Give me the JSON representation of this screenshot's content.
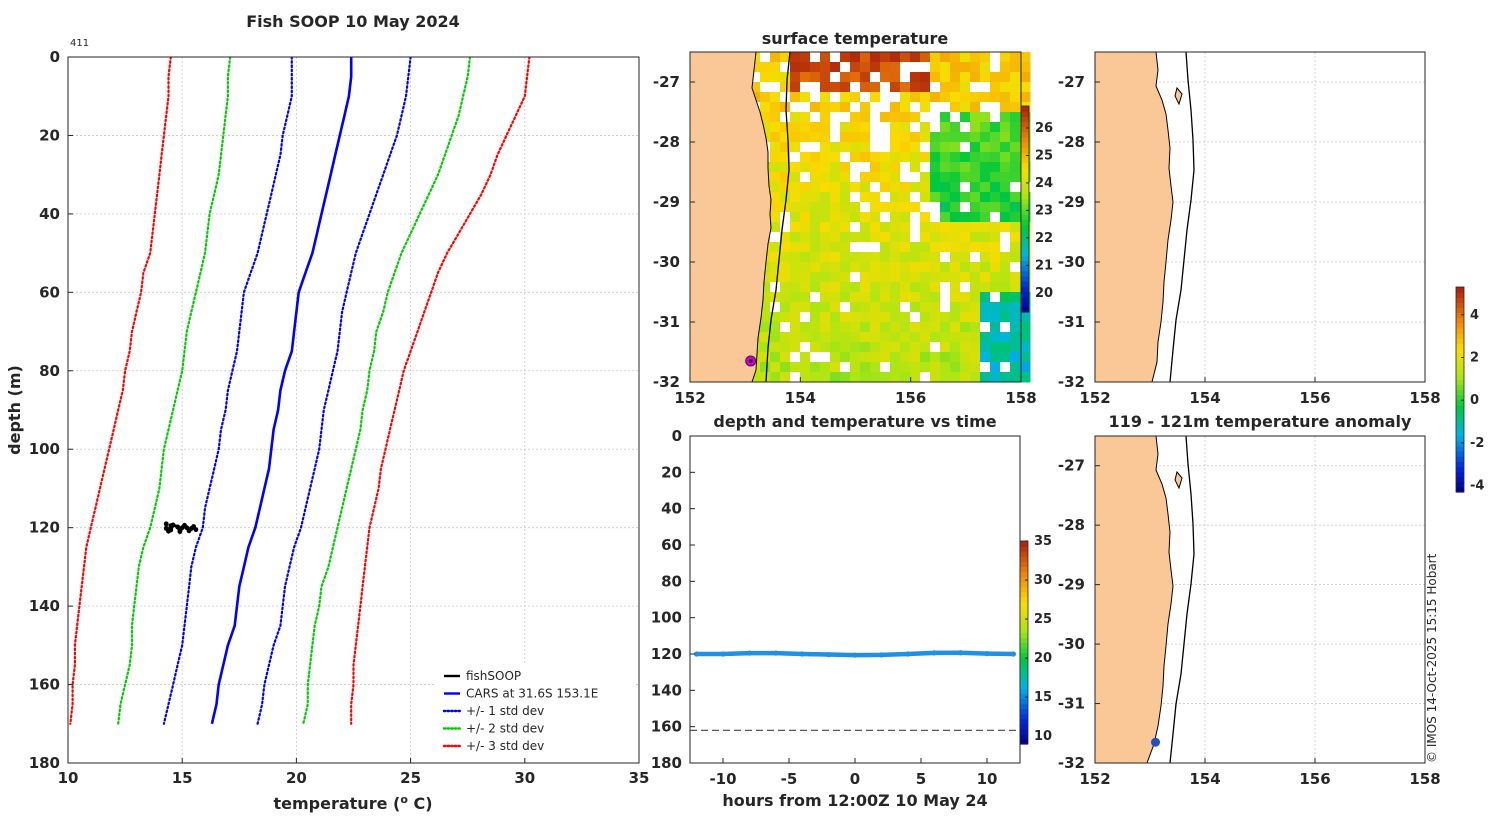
{
  "chart_data": [
    {
      "type": "line",
      "title": "Fish SOOP 10 May 2024",
      "corner_label": "411",
      "xlabel": "temperature (° C)",
      "xlabel_main": "temperature (",
      "xlabel_sup": "o",
      "xlabel_end": " C)",
      "ylabel": "depth (m)",
      "xlim": [
        10,
        35
      ],
      "ylim": [
        180,
        0
      ],
      "xticks": [
        "10",
        "15",
        "20",
        "25",
        "30",
        "35"
      ],
      "yticks": [
        "0",
        "20",
        "40",
        "60",
        "80",
        "100",
        "120",
        "140",
        "160",
        "180"
      ],
      "depths": [
        0,
        5,
        10,
        15,
        20,
        25,
        30,
        35,
        40,
        45,
        50,
        55,
        60,
        65,
        70,
        75,
        80,
        85,
        90,
        95,
        100,
        105,
        110,
        115,
        120,
        125,
        130,
        135,
        140,
        145,
        150,
        155,
        160,
        165,
        170
      ],
      "series": [
        {
          "name": "CARS at 31.6S 153.1E",
          "color": "#0000ff",
          "style": "solid",
          "values": [
            22.4,
            22.4,
            22.3,
            22.1,
            21.9,
            21.7,
            21.5,
            21.3,
            21.1,
            20.9,
            20.7,
            20.4,
            20.1,
            20.0,
            19.9,
            19.8,
            19.5,
            19.3,
            19.2,
            19.0,
            18.9,
            18.8,
            18.6,
            18.4,
            18.2,
            17.9,
            17.7,
            17.5,
            17.4,
            17.3,
            17.0,
            16.8,
            16.6,
            16.5,
            16.3
          ]
        },
        {
          "name": "+/- 1 std dev",
          "color": "#0000ff",
          "style": "dotted",
          "values": [
            25.0,
            24.9,
            24.8,
            24.6,
            24.4,
            24.1,
            23.8,
            23.5,
            23.2,
            22.9,
            22.6,
            22.4,
            22.2,
            22.0,
            21.9,
            21.8,
            21.6,
            21.4,
            21.2,
            21.1,
            21.0,
            20.8,
            20.6,
            20.4,
            20.2,
            19.9,
            19.7,
            19.5,
            19.4,
            19.3,
            19.0,
            18.8,
            18.6,
            18.5,
            18.3
          ]
        },
        {
          "name": "+/- 1 std dev",
          "color": "#0000ff",
          "style": "dotted",
          "values": [
            19.8,
            19.8,
            19.8,
            19.6,
            19.4,
            19.3,
            19.1,
            18.9,
            18.7,
            18.5,
            18.3,
            18.0,
            17.7,
            17.6,
            17.5,
            17.4,
            17.2,
            17.0,
            16.9,
            16.7,
            16.6,
            16.4,
            16.2,
            16.0,
            15.9,
            15.6,
            15.4,
            15.3,
            15.2,
            15.1,
            15.0,
            14.8,
            14.6,
            14.4,
            14.2
          ]
        },
        {
          "name": "+/- 2 std dev",
          "color": "#00cc00",
          "style": "dotted",
          "values": [
            27.6,
            27.5,
            27.3,
            27.1,
            26.8,
            26.5,
            26.2,
            25.8,
            25.4,
            25.0,
            24.6,
            24.3,
            24.0,
            23.8,
            23.5,
            23.4,
            23.2,
            23.1,
            22.9,
            22.8,
            22.6,
            22.4,
            22.2,
            22.0,
            21.8,
            21.6,
            21.4,
            21.1,
            21.0,
            20.8,
            20.7,
            20.6,
            20.5,
            20.5,
            20.3
          ]
        },
        {
          "name": "+/- 2 std dev",
          "color": "#00cc00",
          "style": "dotted",
          "values": [
            17.1,
            17.0,
            17.0,
            16.9,
            16.8,
            16.7,
            16.6,
            16.4,
            16.2,
            16.1,
            16.0,
            15.8,
            15.6,
            15.4,
            15.2,
            15.1,
            15.0,
            14.8,
            14.6,
            14.4,
            14.2,
            14.1,
            14.0,
            13.8,
            13.6,
            13.3,
            13.1,
            13.0,
            12.9,
            12.8,
            12.8,
            12.7,
            12.5,
            12.3,
            12.2
          ]
        },
        {
          "name": "+/- 3 std dev",
          "color": "#ff0000",
          "style": "dotted",
          "values": [
            30.2,
            30.1,
            30.0,
            29.6,
            29.2,
            28.8,
            28.5,
            28.1,
            27.6,
            27.1,
            26.6,
            26.2,
            25.9,
            25.6,
            25.3,
            25.0,
            24.7,
            24.5,
            24.3,
            24.1,
            23.9,
            23.7,
            23.6,
            23.4,
            23.2,
            23.1,
            23.0,
            22.9,
            22.8,
            22.7,
            22.6,
            22.5,
            22.5,
            22.4,
            22.4
          ]
        },
        {
          "name": "+/- 3 std dev",
          "color": "#ff0000",
          "style": "dotted",
          "values": [
            14.5,
            14.4,
            14.4,
            14.3,
            14.2,
            14.1,
            14.0,
            13.9,
            13.8,
            13.7,
            13.6,
            13.3,
            13.2,
            13.0,
            12.8,
            12.7,
            12.5,
            12.4,
            12.2,
            12.0,
            11.8,
            11.6,
            11.4,
            11.2,
            11.0,
            10.8,
            10.7,
            10.6,
            10.5,
            10.4,
            10.3,
            10.3,
            10.2,
            10.2,
            10.1
          ]
        }
      ],
      "fishsoop_points": [
        [
          14.3,
          119
        ],
        [
          14.5,
          119.5
        ],
        [
          14.8,
          119.8
        ],
        [
          15.0,
          120
        ],
        [
          15.2,
          120
        ],
        [
          15.4,
          120.2
        ],
        [
          15.6,
          120.5
        ],
        [
          15.3,
          120.8
        ],
        [
          14.9,
          121
        ],
        [
          14.5,
          120.6
        ],
        [
          14.3,
          120.2
        ],
        [
          14.6,
          119.3
        ],
        [
          15.1,
          119.4
        ],
        [
          15.5,
          119.7
        ],
        [
          14.4,
          120.9
        ]
      ],
      "legend": [
        {
          "label": "fishSOOP",
          "color": "#000000",
          "style": "solid"
        },
        {
          "label": "CARS at 31.6S 153.1E",
          "color": "#0000ff",
          "style": "solid"
        },
        {
          "label": "+/- 1 std dev",
          "color": "#0000ff",
          "style": "dotted"
        },
        {
          "label": "+/- 2 std dev",
          "color": "#00cc00",
          "style": "dotted"
        },
        {
          "label": "+/- 3 std dev",
          "color": "#ff0000",
          "style": "dotted"
        }
      ],
      "legend_position": "bottom-right"
    },
    {
      "type": "heatmap",
      "title": "surface temperature",
      "xlim": [
        152,
        158
      ],
      "ylim": [
        -32,
        -26.5
      ],
      "xticks": [
        "152",
        "154",
        "156",
        "158"
      ],
      "yticks": [
        "-27",
        "-28",
        "-29",
        "-30",
        "-31",
        "-32"
      ],
      "colorbar_ticks": [
        "20",
        "21",
        "22",
        "23",
        "24",
        "25",
        "26"
      ],
      "colorbar_range": [
        19.3,
        26.8
      ],
      "marker": {
        "lon": 153.1,
        "lat": -31.65,
        "color": "#cc00cc"
      }
    },
    {
      "type": "map",
      "title": "",
      "xlim": [
        152,
        158
      ],
      "ylim": [
        -32,
        -26.5
      ],
      "xticks": [
        "152",
        "154",
        "156",
        "158"
      ],
      "yticks": [
        "-27",
        "-28",
        "-29",
        "-30",
        "-31",
        "-32"
      ]
    },
    {
      "type": "scatter",
      "title": "depth and temperature vs time",
      "xlabel": "hours from 12:00Z 10 May 24",
      "xlim": [
        -12.5,
        12.5
      ],
      "ylim": [
        180,
        0
      ],
      "xticks": [
        "-10",
        "-5",
        "0",
        "5",
        "10"
      ],
      "yticks": [
        "0",
        "20",
        "40",
        "60",
        "80",
        "100",
        "120",
        "140",
        "160",
        "180"
      ],
      "reference_depth": 162,
      "depth_track": [
        [
          -12,
          120
        ],
        [
          -10,
          120
        ],
        [
          -8,
          119.5
        ],
        [
          -6,
          119.5
        ],
        [
          -4,
          120
        ],
        [
          -2,
          120.3
        ],
        [
          0,
          120.6
        ],
        [
          2,
          120.5
        ],
        [
          4,
          120
        ],
        [
          6,
          119.4
        ],
        [
          8,
          119.3
        ],
        [
          10,
          119.8
        ],
        [
          12,
          120
        ]
      ],
      "track_color": "#1e90e6",
      "colorbar_ticks": [
        "10",
        "15",
        "20",
        "25",
        "30",
        "35"
      ],
      "colorbar_range": [
        9,
        35
      ]
    },
    {
      "type": "map",
      "title": "119 - 121m temperature anomaly",
      "xlim": [
        152,
        158
      ],
      "ylim": [
        -32,
        -26.5
      ],
      "xticks": [
        "152",
        "154",
        "156",
        "158"
      ],
      "yticks": [
        "-27",
        "-28",
        "-29",
        "-30",
        "-31",
        "-32"
      ],
      "marker": {
        "lon": 153.1,
        "lat": -31.65,
        "color": "#1e50c8"
      },
      "colorbar_ticks": [
        "-4",
        "-2",
        "0",
        "2",
        "4"
      ],
      "colorbar_range": [
        -4.3,
        5.3
      ]
    }
  ],
  "credit": "© IMOS 14-Oct-2025 15:15 Hobart"
}
